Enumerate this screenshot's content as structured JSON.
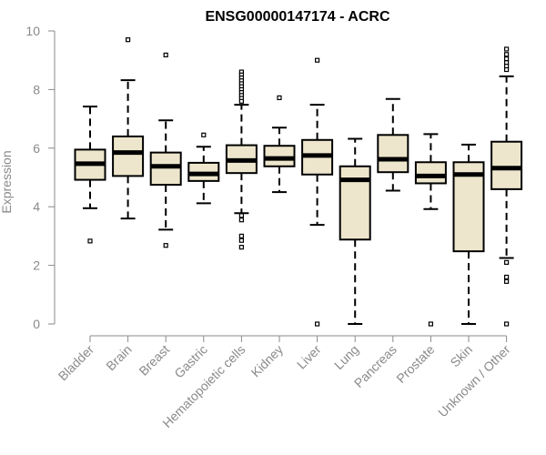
{
  "chart_data": {
    "type": "box",
    "title": "ENSG00000147174 - ACRC",
    "ylabel": "Expression",
    "xlabel": "",
    "ylim": [
      0,
      10
    ],
    "yticks": [
      0,
      2,
      4,
      6,
      8,
      10
    ],
    "grid": false,
    "legend": "none",
    "box_fill": "#ede6cc",
    "box_stroke": "#000000",
    "axis_color": "#8a8a8a",
    "boxes": [
      {
        "category": "Bladder",
        "whisker_low": 3.95,
        "q1": 4.92,
        "median": 5.47,
        "q3": 5.95,
        "whisker_high": 7.42,
        "outliers": [
          2.83
        ]
      },
      {
        "category": "Brain",
        "whisker_low": 3.6,
        "q1": 5.05,
        "median": 5.85,
        "q3": 6.4,
        "whisker_high": 8.32,
        "outliers": [
          9.7
        ]
      },
      {
        "category": "Breast",
        "whisker_low": 3.22,
        "q1": 4.75,
        "median": 5.38,
        "q3": 5.85,
        "whisker_high": 6.95,
        "outliers": [
          9.18,
          2.68
        ]
      },
      {
        "category": "Gastric",
        "whisker_low": 4.12,
        "q1": 4.88,
        "median": 5.12,
        "q3": 5.5,
        "whisker_high": 6.05,
        "outliers": [
          6.45
        ]
      },
      {
        "category": "Hematopoietic cells",
        "whisker_low": 3.78,
        "q1": 5.15,
        "median": 5.58,
        "q3": 6.1,
        "whisker_high": 7.48,
        "outliers": [
          8.6,
          8.5,
          8.4,
          8.3,
          8.2,
          8.1,
          8.0,
          7.9,
          7.8,
          7.7,
          7.6,
          3.7,
          3.55,
          3.0,
          2.85,
          2.62
        ]
      },
      {
        "category": "Kidney",
        "whisker_low": 4.5,
        "q1": 5.38,
        "median": 5.65,
        "q3": 6.08,
        "whisker_high": 6.7,
        "outliers": [
          7.72
        ]
      },
      {
        "category": "Liver",
        "whisker_low": 3.38,
        "q1": 5.1,
        "median": 5.75,
        "q3": 6.28,
        "whisker_high": 7.48,
        "outliers": [
          9.0,
          0.0
        ]
      },
      {
        "category": "Lung",
        "whisker_low": 0.0,
        "q1": 2.88,
        "median": 4.92,
        "q3": 5.38,
        "whisker_high": 6.32,
        "outliers": []
      },
      {
        "category": "Pancreas",
        "whisker_low": 4.55,
        "q1": 5.18,
        "median": 5.62,
        "q3": 6.45,
        "whisker_high": 7.68,
        "outliers": []
      },
      {
        "category": "Prostate",
        "whisker_low": 3.92,
        "q1": 4.8,
        "median": 5.05,
        "q3": 5.52,
        "whisker_high": 6.48,
        "outliers": [
          0.0
        ]
      },
      {
        "category": "Skin",
        "whisker_low": 0.0,
        "q1": 2.48,
        "median": 5.1,
        "q3": 5.52,
        "whisker_high": 6.12,
        "outliers": []
      },
      {
        "category": "Unknown / Other",
        "whisker_low": 2.25,
        "q1": 4.6,
        "median": 5.32,
        "q3": 6.22,
        "whisker_high": 8.45,
        "outliers": [
          9.38,
          9.2,
          9.05,
          8.92,
          8.8,
          8.68,
          2.1,
          1.6,
          1.45,
          0.0
        ]
      }
    ]
  }
}
